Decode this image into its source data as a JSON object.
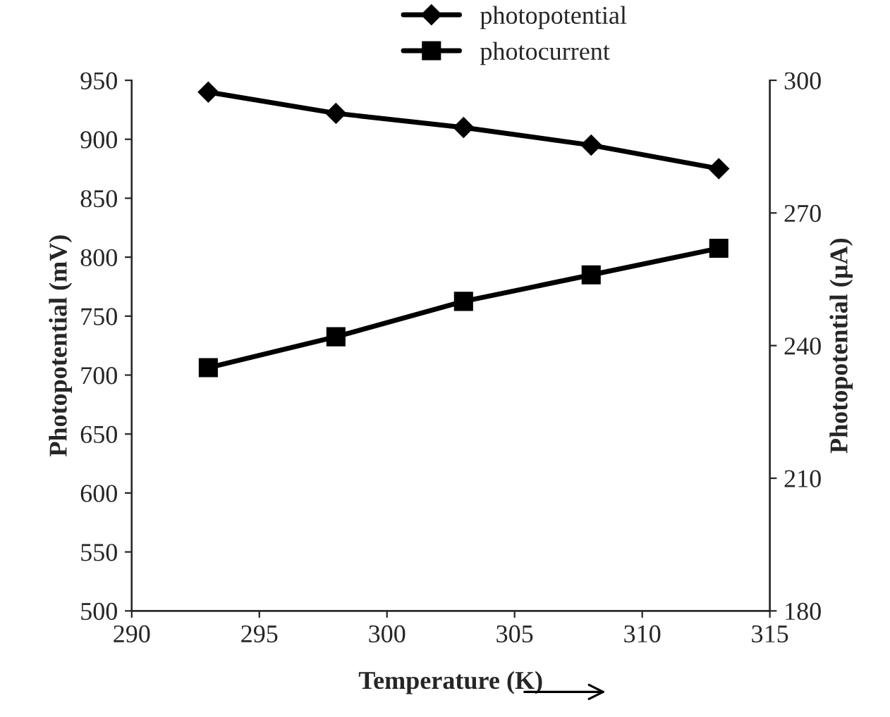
{
  "chart_data": {
    "type": "line",
    "xlabel": "Temperature (K)",
    "ylabel": "Photopotential (mV)",
    "y2label": "Photopotential (µA)",
    "x": [
      293,
      298,
      303,
      308,
      313
    ],
    "series": [
      {
        "name": "photopotential",
        "color": "#000000",
        "marker": "diamond",
        "values": [
          940,
          922,
          910,
          895,
          875
        ]
      },
      {
        "name": "photocurrent",
        "color": "#000000",
        "marker": "square",
        "axis": "y2",
        "values": [
          235,
          242,
          250,
          256,
          262
        ]
      }
    ],
    "xlim": [
      290,
      315
    ],
    "xticks": [
      290,
      295,
      300,
      305,
      310,
      315
    ],
    "ylim": [
      500,
      950
    ],
    "yticks": [
      500,
      550,
      600,
      650,
      700,
      750,
      800,
      850,
      900,
      950
    ],
    "y2lim": [
      180,
      300
    ],
    "y2ticks": [
      180,
      210,
      240,
      270,
      300
    ],
    "legend": "top right",
    "grid": false,
    "line_style": "solid"
  }
}
